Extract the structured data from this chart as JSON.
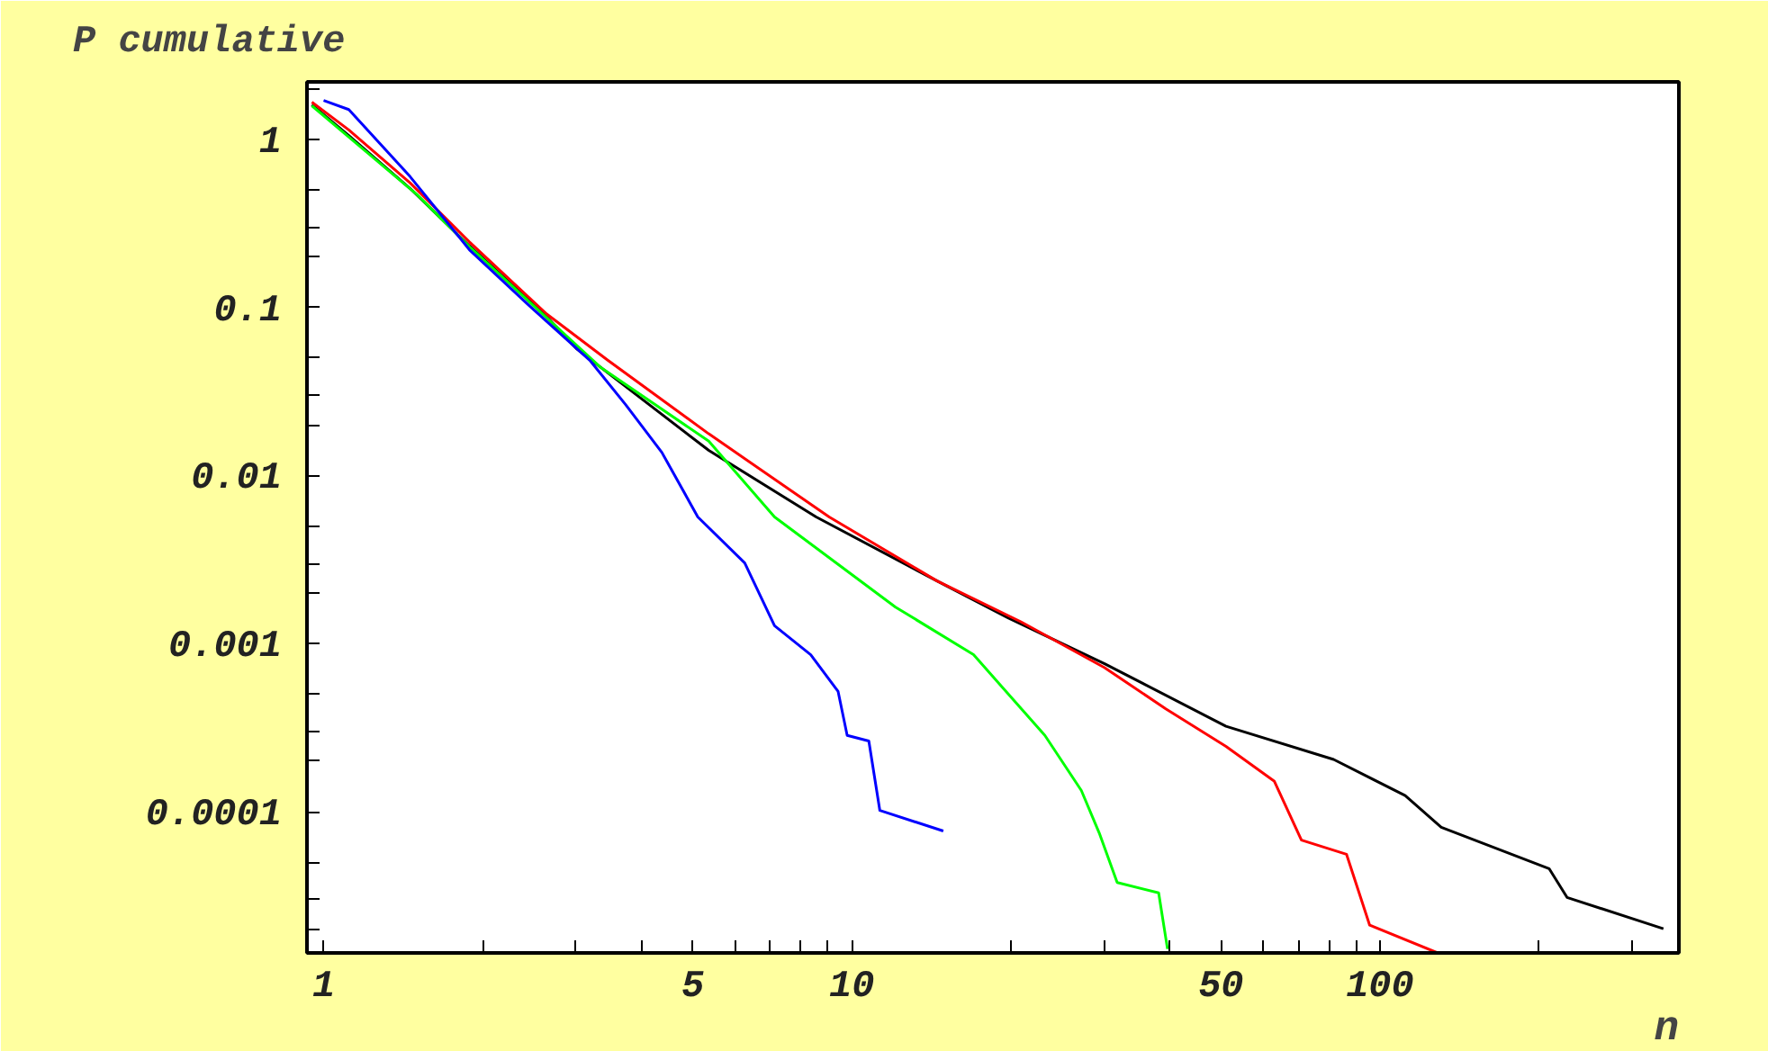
{
  "chart_data": {
    "type": "line",
    "ylabel": "P cumulative",
    "xlabel": "n",
    "log": "xy",
    "grid": false,
    "line_style": "solid",
    "marker": "none",
    "xlim": [
      0.93,
      368
    ],
    "ylim": [
      1.45e-05,
      2.19
    ],
    "xticks": [
      1,
      {
        "value": 2,
        "label": null
      },
      {
        "value": 3,
        "label": null
      },
      {
        "value": 4,
        "label": null
      },
      5,
      {
        "value": 6,
        "label": null
      },
      {
        "value": 7,
        "label": null
      },
      {
        "value": 8,
        "label": null
      },
      {
        "value": 9,
        "label": null
      },
      10,
      {
        "value": 20,
        "label": null
      },
      {
        "value": 30,
        "label": null
      },
      {
        "value": 40,
        "label": null
      },
      50,
      {
        "value": 60,
        "label": null
      },
      {
        "value": 70,
        "label": null
      },
      {
        "value": 80,
        "label": null
      },
      {
        "value": 90,
        "label": null
      },
      100,
      {
        "value": 200,
        "label": null
      },
      {
        "value": 300,
        "label": null
      }
    ],
    "yticks": [
      {
        "value": 2,
        "label": null
      },
      1,
      {
        "value": 0.5,
        "label": null
      },
      {
        "value": 0.3,
        "label": null
      },
      {
        "value": 0.2,
        "label": null
      },
      0.1,
      {
        "value": 0.05,
        "label": null
      },
      {
        "value": 0.03,
        "label": null
      },
      {
        "value": 0.02,
        "label": null
      },
      0.01,
      {
        "value": 0.005,
        "label": null
      },
      {
        "value": 0.003,
        "label": null
      },
      {
        "value": 0.002,
        "label": null
      },
      0.001,
      {
        "value": 0.0005,
        "label": null
      },
      {
        "value": 0.0003,
        "label": null
      },
      {
        "value": 0.0002,
        "label": null
      },
      0.0001,
      {
        "value": 5e-05,
        "label": null
      },
      {
        "value": 3e-05,
        "label": null
      },
      {
        "value": 2e-05,
        "label": null
      }
    ],
    "series": [
      {
        "color": "#000000",
        "x": [
          0.95,
          1.116,
          1.457,
          1.888,
          2.645,
          3.02,
          5.36,
          8.56,
          14.5,
          19.8,
          30.1,
          51.1,
          81.7,
          111.6,
          130.6,
          209,
          226,
          344
        ],
        "values": [
          1.6,
          1.05,
          0.51,
          0.232,
          0.088,
          0.0563,
          0.0141,
          0.00567,
          0.00236,
          0.00142,
          0.00076,
          0.000323,
          0.000205,
          0.000125,
          8.1e-05,
          4.6e-05,
          3.1e-05,
          2.02e-05
        ]
      },
      {
        "color": "#ff0000",
        "x": [
          0.95,
          1.116,
          1.457,
          1.888,
          2.645,
          3.45,
          5.36,
          9.06,
          14.5,
          20.9,
          30.1,
          39.3,
          51.1,
          63.1,
          71.0,
          86.4,
          95.6,
          128.6
        ],
        "values": [
          1.66,
          1.134,
          0.55,
          0.245,
          0.0912,
          0.0485,
          0.0177,
          0.00567,
          0.00236,
          0.00135,
          0.00072,
          0.00041,
          0.000245,
          0.000152,
          6.8e-05,
          5.6e-05,
          2.12e-05,
          1.45e-05
        ]
      },
      {
        "color": "#00ff00",
        "x": [
          0.95,
          1.2,
          1.5,
          1.9,
          3.35,
          5.36,
          7.14,
          12.1,
          17.0,
          23.2,
          27.2,
          29.4,
          31.8,
          38.1,
          39.6
        ],
        "values": [
          1.58,
          0.85,
          0.47,
          0.225,
          0.0438,
          0.016,
          0.00567,
          0.00165,
          0.00086,
          0.000285,
          0.000134,
          7.5e-05,
          3.8e-05,
          3.3e-05,
          1.53e-05
        ]
      },
      {
        "color": "#0000ff",
        "x": [
          1.0,
          1.116,
          1.457,
          1.888,
          2.445,
          3.19,
          3.73,
          4.37,
          5.11,
          6.27,
          7.14,
          8.36,
          9.42,
          9.8,
          10.77,
          11.3,
          14.9
        ],
        "values": [
          1.7,
          1.5,
          0.6,
          0.22,
          0.103,
          0.0485,
          0.0264,
          0.0137,
          0.00567,
          0.00302,
          0.00128,
          0.00086,
          0.00052,
          0.000285,
          0.000264,
          0.000102,
          7.7e-05
        ]
      }
    ]
  }
}
